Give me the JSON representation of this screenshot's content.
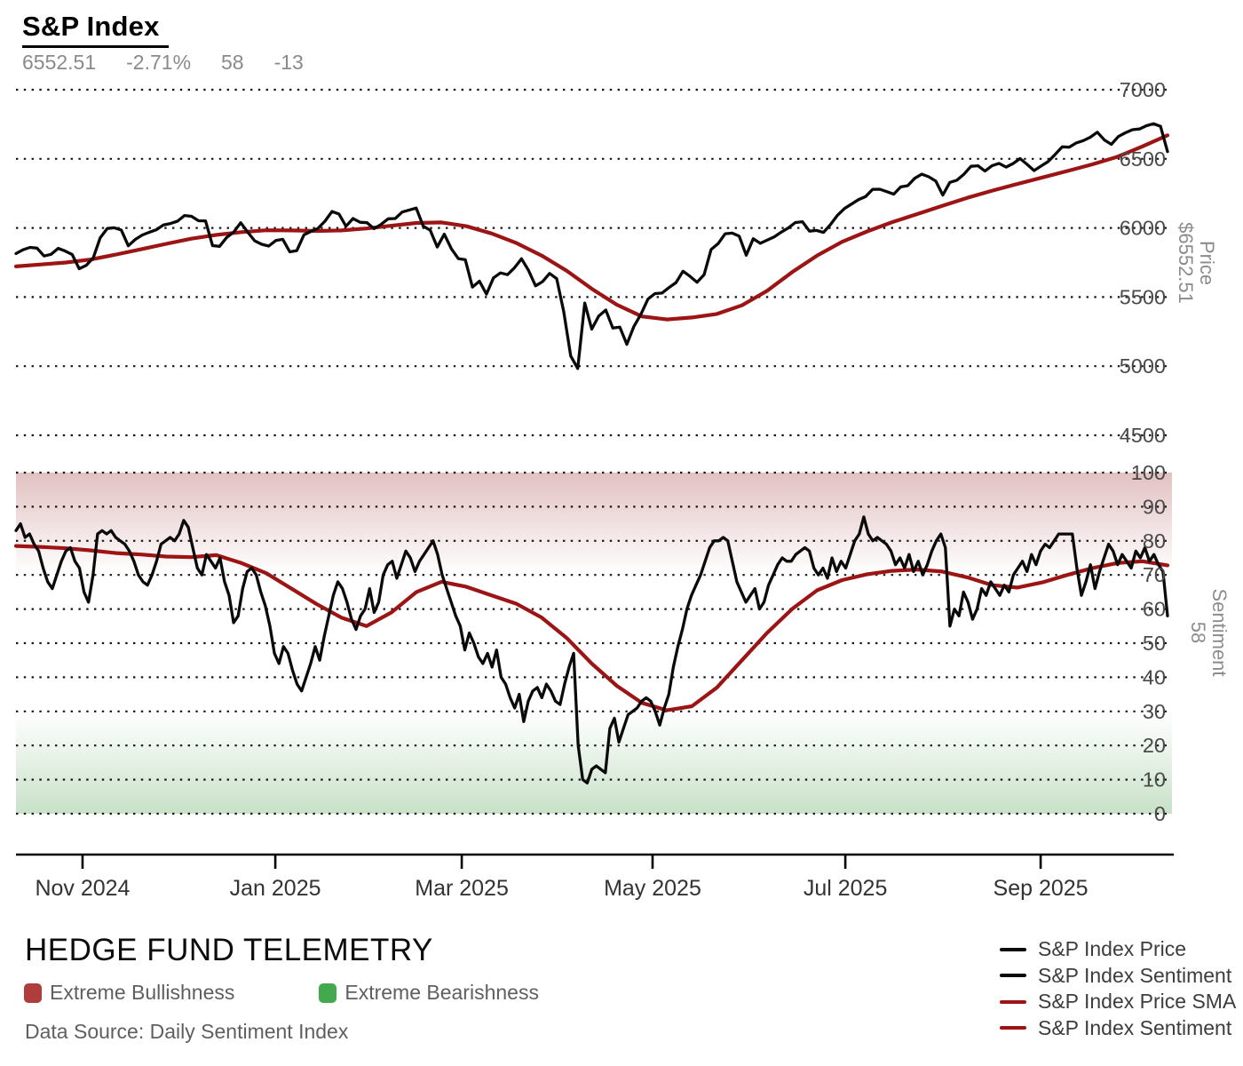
{
  "header": {
    "title": "S&P Index",
    "price": "6552.51",
    "change_pct": "-2.71%",
    "sentiment": "58",
    "sentiment_change": "-13"
  },
  "axes": {
    "price_axis_title": [
      "Price",
      "$6552.51"
    ],
    "sentiment_axis_title": [
      "Sentiment",
      "58"
    ],
    "x_ticks": [
      {
        "label": "Nov 2024",
        "f": 0.0578
      },
      {
        "label": "Jan 2025",
        "f": 0.2252
      },
      {
        "label": "Mar 2025",
        "f": 0.3871
      },
      {
        "label": "May 2025",
        "f": 0.5528
      },
      {
        "label": "Jul 2025",
        "f": 0.7202
      },
      {
        "label": "Sep 2025",
        "f": 0.8898
      }
    ]
  },
  "legend": {
    "items": [
      {
        "label": "S&P Index Price",
        "color": "#0a0a0a"
      },
      {
        "label": "S&P Index Sentiment",
        "color": "#0a0a0a"
      },
      {
        "label": "S&P Index Price SMA",
        "color": "#9c1414"
      },
      {
        "label": "S&P Index Sentiment",
        "color": "#9c1414"
      }
    ]
  },
  "footer": {
    "brand": "HEDGE FUND TELEMETRY",
    "data_source": "Data Source: Daily Sentiment Index",
    "bands_legend": [
      {
        "label": "Extreme Bullishness",
        "color": "#b13c3c"
      },
      {
        "label": "Extreme Bearishness",
        "color": "#42a94c"
      }
    ]
  },
  "chart_data": {
    "type": "line",
    "title": "S&P Index",
    "x_range": [
      "Oct 2024",
      "Oct 2025"
    ],
    "x_tick_labels": [
      "Nov 2024",
      "Jan 2025",
      "Mar 2025",
      "May 2025",
      "Jul 2025",
      "Sep 2025"
    ],
    "grid": "dotted",
    "legend_position": "bottom-right",
    "panels": [
      {
        "name": "price",
        "ylabel": "Price $6552.51",
        "ylim": [
          4500,
          7000
        ],
        "yticks": [
          7000,
          6500,
          6000,
          5500,
          5000,
          4500
        ],
        "series": [
          {
            "name": "S&P Index Price",
            "color": "#0a0a0a",
            "values": [
              5815,
              5842,
              5859,
              5854,
              5797,
              5809,
              5852,
              5833,
              5808,
              5705,
              5729,
              5783,
              5929,
              5996,
              6001,
              5985,
              5871,
              5917,
              5949,
              5969,
              5987,
              6022,
              6032,
              6049,
              6090,
              6084,
              6052,
              6051,
              5872,
              5867,
              5931,
              5970,
              6038,
              5970,
              5907,
              5882,
              5869,
              5909,
              5918,
              5827,
              5836,
              5950,
              5975,
              5997,
              6049,
              6119,
              6101,
              6012,
              6068,
              6041,
              6038,
              5995,
              6026,
              6066,
              6068,
              6115,
              6130,
              6144,
              6013,
              5983,
              5862,
              5955,
              5850,
              5778,
              5770,
              5572,
              5615,
              5521,
              5639,
              5675,
              5662,
              5712,
              5777,
              5693,
              5581,
              5612,
              5671,
              5633,
              5396,
              5074,
              4983,
              5457,
              5268,
              5363,
              5406,
              5276,
              5283,
              5158,
              5288,
              5376,
              5485,
              5525,
              5529,
              5569,
              5605,
              5687,
              5650,
              5607,
              5661,
              5844,
              5887,
              5958,
              5963,
              5940,
              5803,
              5922,
              5889,
              5912,
              5936,
              5970,
              6000,
              6039,
              6045,
              5977,
              5982,
              5968,
              6025,
              6092,
              6141,
              6173,
              6205,
              6227,
              6279,
              6280,
              6263,
              6244,
              6297,
              6306,
              6359,
              6389,
              6370,
              6339,
              6238,
              6330,
              6345,
              6389,
              6446,
              6450,
              6411,
              6450,
              6467,
              6440,
              6466,
              6502,
              6460,
              6415,
              6448,
              6481,
              6532,
              6587,
              6584,
              6615,
              6632,
              6656,
              6693,
              6637,
              6605,
              6661,
              6688,
              6711,
              6716,
              6740,
              6754,
              6735,
              6552
            ]
          },
          {
            "name": "S&P Index Price SMA",
            "color": "#9c1414",
            "values": [
              5722,
              5736,
              5750,
              5772,
              5808,
              5846,
              5885,
              5922,
              5950,
              5970,
              5983,
              5982,
              5978,
              5982,
              5996,
              6016,
              6036,
              6040,
              6012,
              5960,
              5890,
              5800,
              5690,
              5560,
              5445,
              5360,
              5338,
              5352,
              5378,
              5440,
              5545,
              5680,
              5800,
              5900,
              5975,
              6042,
              6100,
              6160,
              6218,
              6270,
              6318,
              6365,
              6412,
              6460,
              6515,
              6590,
              6670
            ]
          }
        ]
      },
      {
        "name": "sentiment",
        "ylabel": "Sentiment 58",
        "ylim": [
          0,
          100
        ],
        "yticks": [
          100,
          90,
          80,
          70,
          60,
          50,
          40,
          30,
          20,
          10,
          0
        ],
        "bands": [
          {
            "name": "Extreme Bullishness",
            "from": 100,
            "to": 70,
            "color": "#a53c3c"
          },
          {
            "name": "Extreme Bearishness",
            "from": 30,
            "to": 0,
            "color": "#50a050"
          }
        ],
        "series": [
          {
            "name": "S&P Index Sentiment",
            "color": "#0a0a0a",
            "values": [
              83,
              85,
              81,
              82,
              79,
              77,
              72,
              68,
              66,
              70,
              74,
              77,
              78,
              74,
              72,
              65,
              62,
              70,
              82,
              83,
              82,
              83,
              81,
              80,
              79,
              77,
              74,
              70,
              68,
              67,
              70,
              74,
              79,
              80,
              81,
              80,
              82,
              86,
              84,
              78,
              72,
              70,
              76,
              74,
              72,
              75,
              68,
              64,
              56,
              58,
              66,
              71,
              72,
              70,
              65,
              61,
              55,
              47,
              44,
              49,
              47,
              42,
              38,
              36,
              40,
              44,
              49,
              45,
              52,
              58,
              64,
              68,
              66,
              62,
              57,
              54,
              58,
              60,
              66,
              59,
              62,
              70,
              73,
              74,
              69,
              73,
              77,
              75,
              71,
              74,
              76,
              78,
              80,
              76,
              70,
              66,
              62,
              58,
              55,
              48,
              53,
              50,
              46,
              44,
              47,
              43,
              48,
              40,
              38,
              34,
              31,
              35,
              27,
              33,
              36,
              37,
              34,
              38,
              36,
              33,
              32,
              38,
              43,
              47,
              20,
              10,
              9,
              13,
              14,
              13,
              12,
              25,
              28,
              21,
              25,
              29,
              30,
              31,
              33,
              34,
              33,
              30,
              26,
              31,
              35,
              43,
              49,
              54,
              60,
              64,
              67,
              70,
              74,
              78,
              80,
              80,
              81,
              80,
              74,
              68,
              65,
              62,
              64,
              66,
              60,
              62,
              67,
              70,
              73,
              75,
              74,
              74,
              76,
              77,
              78,
              77,
              72,
              70,
              72,
              69,
              75,
              71,
              74,
              72,
              76,
              80,
              82,
              87,
              82,
              80,
              81,
              80,
              79,
              77,
              73,
              75,
              72,
              76,
              71,
              74,
              70,
              73,
              77,
              80,
              82,
              78,
              55,
              60,
              58,
              65,
              62,
              57,
              60,
              66,
              64,
              68,
              66,
              64,
              67,
              65,
              70,
              72,
              74,
              71,
              76,
              73,
              77,
              79,
              78,
              80,
              82,
              82,
              82,
              82,
              72,
              64,
              68,
              73,
              66,
              71,
              75,
              79,
              77,
              73,
              76,
              74,
              72,
              77,
              75,
              78,
              74,
              76,
              73,
              71,
              58
            ]
          },
          {
            "name": "S&P Index Sentiment SMA",
            "color": "#9c1414",
            "values": [
              78.5,
              78.2,
              77.8,
              77.2,
              76.4,
              76.0,
              75.4,
              75.2,
              75.8,
              73.5,
              70.5,
              66,
              61.5,
              57.5,
              55,
              59,
              65,
              68,
              66.5,
              64,
              61.5,
              57.5,
              51.5,
              44,
              37.5,
              32.5,
              30.3,
              31.5,
              37,
              45,
              53,
              60,
              65.5,
              68.5,
              70.2,
              71.2,
              71.6,
              71,
              69.3,
              67,
              66.3,
              67.8,
              70,
              72,
              73.5,
              74,
              72.8
            ]
          }
        ]
      }
    ]
  }
}
